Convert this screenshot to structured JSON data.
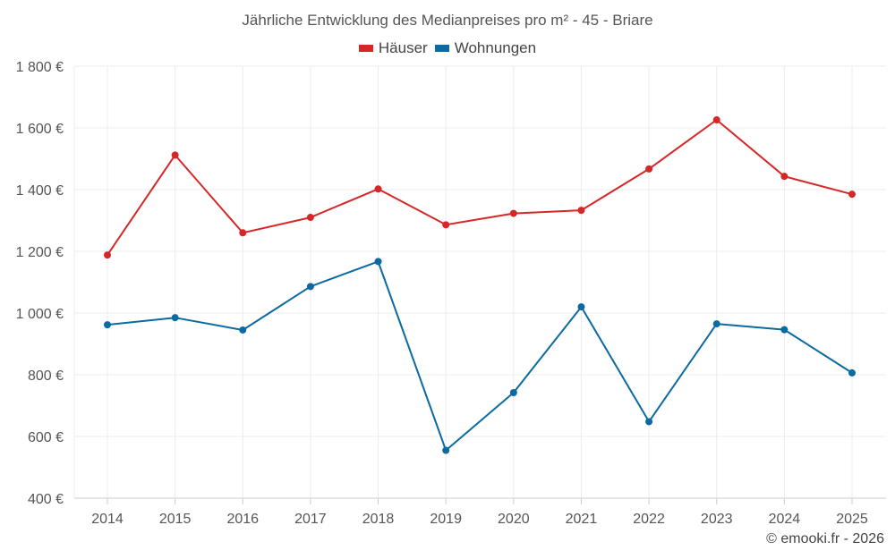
{
  "chart_data": {
    "type": "line",
    "title": "Jährliche Entwicklung des Medianpreises pro m² - 45 - Briare",
    "categories": [
      "2014",
      "2015",
      "2016",
      "2017",
      "2018",
      "2019",
      "2020",
      "2021",
      "2022",
      "2023",
      "2024",
      "2025"
    ],
    "y_ticks": [
      400,
      600,
      800,
      1000,
      1200,
      1400,
      1600,
      1800
    ],
    "y_tick_labels": [
      "400 €",
      "600 €",
      "800 €",
      "1 000 €",
      "1 200 €",
      "1 400 €",
      "1 600 €",
      "1 800 €"
    ],
    "ylim": [
      400,
      1800
    ],
    "series": [
      {
        "name": "Häuser",
        "color": "#d62728",
        "values": [
          1188,
          1512,
          1260,
          1310,
          1402,
          1286,
          1323,
          1333,
          1467,
          1626,
          1443,
          1385
        ]
      },
      {
        "name": "Wohnungen",
        "color": "#0a6aa1",
        "values": [
          962,
          985,
          945,
          1086,
          1167,
          555,
          742,
          1020,
          648,
          965,
          946,
          806
        ]
      }
    ],
    "grid": true,
    "legend": "top-center"
  },
  "credit": "© emooki.fr - 2026"
}
